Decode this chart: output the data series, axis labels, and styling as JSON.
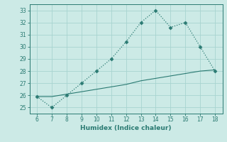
{
  "x": [
    6,
    7,
    8,
    9,
    10,
    11,
    12,
    13,
    14,
    15,
    16,
    17,
    18
  ],
  "y_main": [
    25.9,
    25.0,
    26.0,
    27.0,
    28.0,
    29.0,
    30.4,
    32.0,
    33.0,
    31.6,
    32.0,
    30.0,
    28.0
  ],
  "y_base": [
    25.9,
    25.9,
    26.1,
    26.3,
    26.5,
    26.7,
    26.9,
    27.2,
    27.4,
    27.6,
    27.8,
    28.0,
    28.1
  ],
  "line_color": "#2a7a72",
  "bg_color": "#cceae6",
  "grid_color": "#a8d4d0",
  "xlabel": "Humidex (Indice chaleur)",
  "ylim": [
    24.5,
    33.5
  ],
  "xlim": [
    5.5,
    18.5
  ],
  "yticks": [
    25,
    26,
    27,
    28,
    29,
    30,
    31,
    32,
    33
  ],
  "xticks": [
    6,
    7,
    8,
    9,
    10,
    11,
    12,
    13,
    14,
    15,
    16,
    17,
    18
  ],
  "marker": "D",
  "markersize": 2.5,
  "linewidth": 0.9,
  "base_linewidth": 0.8
}
